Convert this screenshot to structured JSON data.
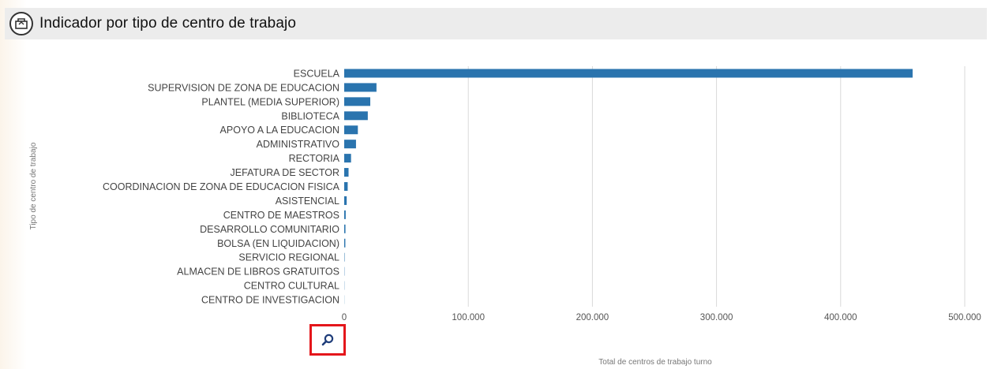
{
  "header": {
    "title": "Indicador por tipo de centro de trabajo",
    "icon": "chart-box-icon"
  },
  "zoom_button": {
    "icon": "magnifier-icon"
  },
  "colors": {
    "bar": "#2a74ae",
    "highlight": "#e4161b",
    "grid": "#d9d9d9"
  },
  "chart_data": {
    "type": "bar",
    "orientation": "horizontal",
    "title": "",
    "xlabel": "Total de centros de trabajo turno",
    "ylabel": "Tipo de centro de trabajo",
    "xlim": [
      0,
      500000
    ],
    "x_ticks": [
      "0",
      "100.000",
      "200.000",
      "300.000",
      "400.000",
      "500.000"
    ],
    "x_tick_values": [
      0,
      100000,
      200000,
      300000,
      400000,
      500000
    ],
    "grid": true,
    "categories": [
      "ESCUELA",
      "SUPERVISION DE ZONA DE EDUCACION",
      "PLANTEL (MEDIA SUPERIOR)",
      "BIBLIOTECA",
      "APOYO A LA EDUCACION",
      "ADMINISTRATIVO",
      "RECTORIA",
      "JEFATURA DE SECTOR",
      "COORDINACION DE ZONA DE EDUCACION FISICA",
      "ASISTENCIAL",
      "CENTRO DE MAESTROS",
      "DESARROLLO COMUNITARIO",
      "BOLSA (EN LIQUIDACION)",
      "SERVICIO REGIONAL",
      "ALMACEN DE LIBROS GRATUITOS",
      "CENTRO CULTURAL",
      "CENTRO DE INVESTIGACION"
    ],
    "values": [
      458000,
      26000,
      21000,
      19000,
      11000,
      9500,
      5500,
      3500,
      2800,
      2000,
      1200,
      1000,
      900,
      300,
      200,
      150,
      100
    ]
  }
}
